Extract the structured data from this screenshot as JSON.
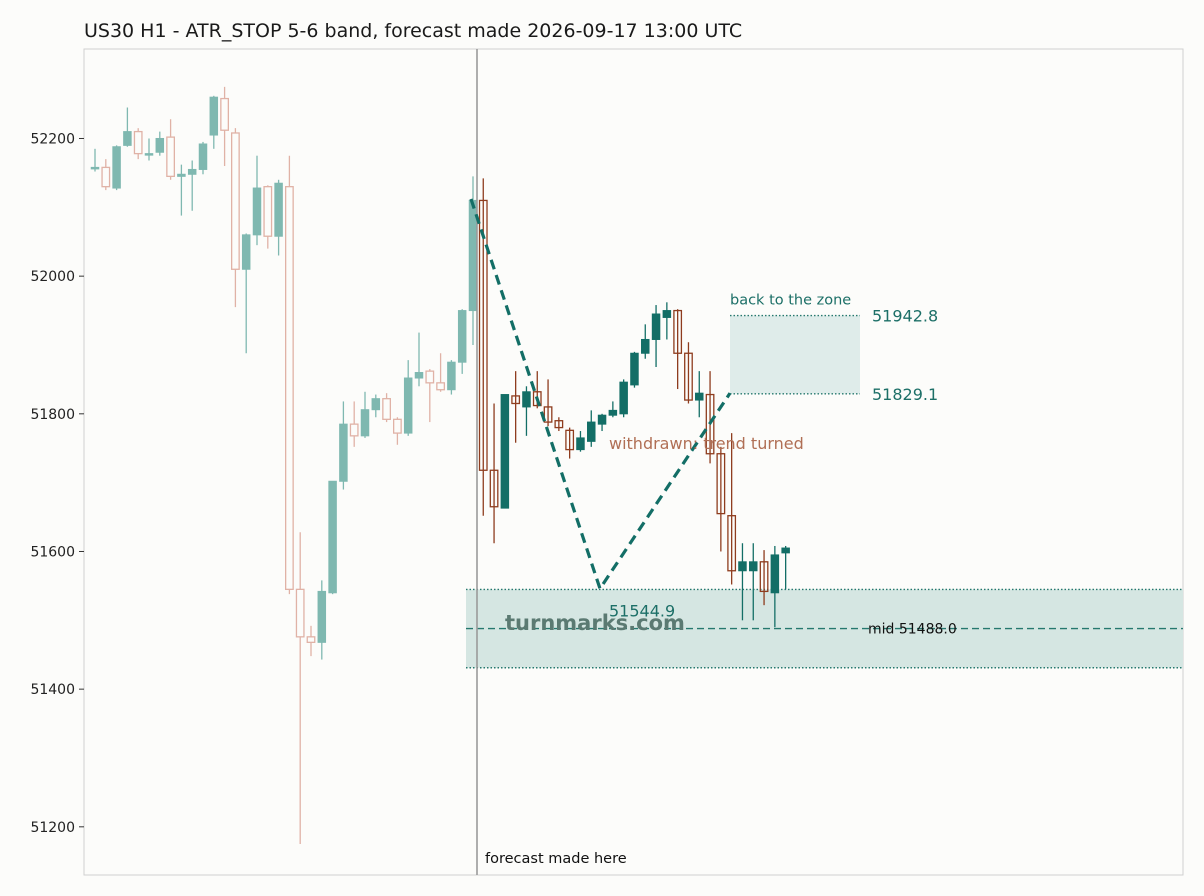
{
  "chart_data": {
    "type": "candlestick",
    "title": "US30 H1 - ATR_STOP 5-6 band, forecast made 2026-09-17 13:00 UTC",
    "ylim": [
      51130,
      52330
    ],
    "y_ticks": [
      51200,
      51400,
      51600,
      51800,
      52000,
      52200
    ],
    "grid": false,
    "colors": {
      "history_up": "#7fb8b0",
      "history_down": "#e0b2a6",
      "forecast_up": "#136e66",
      "forecast_down": "#8e3c1e",
      "band": "#d5e6e2",
      "band_line": "#26786e",
      "zone_text": "#1c6f67",
      "withdrawn_text": "#b06f55"
    },
    "history": [
      {
        "o": 52156,
        "h": 52185,
        "l": 52152,
        "c": 52158
      },
      {
        "o": 52158,
        "h": 52170,
        "l": 52125,
        "c": 52130
      },
      {
        "o": 52128,
        "h": 52190,
        "l": 52125,
        "c": 52188
      },
      {
        "o": 52190,
        "h": 52245,
        "l": 52188,
        "c": 52210
      },
      {
        "o": 52210,
        "h": 52215,
        "l": 52170,
        "c": 52178
      },
      {
        "o": 52176,
        "h": 52200,
        "l": 52168,
        "c": 52178
      },
      {
        "o": 52180,
        "h": 52210,
        "l": 52175,
        "c": 52200
      },
      {
        "o": 52202,
        "h": 52228,
        "l": 52140,
        "c": 52145
      },
      {
        "o": 52145,
        "h": 52162,
        "l": 52088,
        "c": 52148
      },
      {
        "o": 52148,
        "h": 52168,
        "l": 52095,
        "c": 52155
      },
      {
        "o": 52155,
        "h": 52195,
        "l": 52148,
        "c": 52192
      },
      {
        "o": 52205,
        "h": 52262,
        "l": 52185,
        "c": 52260
      },
      {
        "o": 52258,
        "h": 52275,
        "l": 52160,
        "c": 52212
      },
      {
        "o": 52208,
        "h": 52215,
        "l": 51955,
        "c": 52010
      },
      {
        "o": 52010,
        "h": 52062,
        "l": 51888,
        "c": 52060
      },
      {
        "o": 52060,
        "h": 52175,
        "l": 52045,
        "c": 52128
      },
      {
        "o": 52130,
        "h": 52132,
        "l": 52040,
        "c": 52058
      },
      {
        "o": 52058,
        "h": 52140,
        "l": 52030,
        "c": 52135
      },
      {
        "o": 52130,
        "h": 52175,
        "l": 51538,
        "c": 51545
      },
      {
        "o": 51545,
        "h": 51628,
        "l": 51175,
        "c": 51476
      },
      {
        "o": 51476,
        "h": 51492,
        "l": 51448,
        "c": 51468
      },
      {
        "o": 51468,
        "h": 51558,
        "l": 51443,
        "c": 51542
      },
      {
        "o": 51540,
        "h": 51702,
        "l": 51538,
        "c": 51702
      },
      {
        "o": 51702,
        "h": 51818,
        "l": 51690,
        "c": 51785
      },
      {
        "o": 51785,
        "h": 51818,
        "l": 51752,
        "c": 51768
      },
      {
        "o": 51768,
        "h": 51832,
        "l": 51765,
        "c": 51806
      },
      {
        "o": 51806,
        "h": 51828,
        "l": 51795,
        "c": 51822
      },
      {
        "o": 51822,
        "h": 51830,
        "l": 51788,
        "c": 51792
      },
      {
        "o": 51792,
        "h": 51795,
        "l": 51755,
        "c": 51772
      },
      {
        "o": 51772,
        "h": 51878,
        "l": 51768,
        "c": 51852
      },
      {
        "o": 51852,
        "h": 51918,
        "l": 51840,
        "c": 51860
      },
      {
        "o": 51862,
        "h": 51865,
        "l": 51788,
        "c": 51845
      },
      {
        "o": 51845,
        "h": 51888,
        "l": 51832,
        "c": 51835
      },
      {
        "o": 51835,
        "h": 51878,
        "l": 51828,
        "c": 51875
      },
      {
        "o": 51875,
        "h": 51952,
        "l": 51858,
        "c": 51950
      },
      {
        "o": 51950,
        "h": 52145,
        "l": 51900,
        "c": 52110
      }
    ],
    "forecast": [
      {
        "o": 52110,
        "h": 52142,
        "l": 51652,
        "c": 51718
      },
      {
        "o": 51718,
        "h": 51815,
        "l": 51612,
        "c": 51665
      },
      {
        "o": 51663,
        "h": 51828,
        "l": 51663,
        "c": 51828
      },
      {
        "o": 51826,
        "h": 51862,
        "l": 51758,
        "c": 51815
      },
      {
        "o": 51810,
        "h": 51840,
        "l": 51768,
        "c": 51832
      },
      {
        "o": 51832,
        "h": 51862,
        "l": 51808,
        "c": 51812
      },
      {
        "o": 51810,
        "h": 51850,
        "l": 51782,
        "c": 51788
      },
      {
        "o": 51790,
        "h": 51795,
        "l": 51775,
        "c": 51780
      },
      {
        "o": 51776,
        "h": 51780,
        "l": 51735,
        "c": 51748
      },
      {
        "o": 51748,
        "h": 51775,
        "l": 51745,
        "c": 51765
      },
      {
        "o": 51760,
        "h": 51805,
        "l": 51752,
        "c": 51788
      },
      {
        "o": 51785,
        "h": 51800,
        "l": 51775,
        "c": 51798
      },
      {
        "o": 51798,
        "h": 51818,
        "l": 51795,
        "c": 51805
      },
      {
        "o": 51800,
        "h": 51850,
        "l": 51795,
        "c": 51846
      },
      {
        "o": 51842,
        "h": 51890,
        "l": 51838,
        "c": 51888
      },
      {
        "o": 51888,
        "h": 51930,
        "l": 51880,
        "c": 51908
      },
      {
        "o": 51908,
        "h": 51958,
        "l": 51868,
        "c": 51945
      },
      {
        "o": 51940,
        "h": 51962,
        "l": 51908,
        "c": 51950
      },
      {
        "o": 51950,
        "h": 51952,
        "l": 51836,
        "c": 51888
      },
      {
        "o": 51888,
        "h": 51904,
        "l": 51815,
        "c": 51820
      },
      {
        "o": 51820,
        "h": 51862,
        "l": 51795,
        "c": 51830
      },
      {
        "o": 51828,
        "h": 51862,
        "l": 51728,
        "c": 51742
      },
      {
        "o": 51742,
        "h": 51752,
        "l": 51600,
        "c": 51655
      },
      {
        "o": 51652,
        "h": 51772,
        "l": 51552,
        "c": 51572
      },
      {
        "o": 51572,
        "h": 51612,
        "l": 51500,
        "c": 51585
      },
      {
        "o": 51572,
        "h": 51612,
        "l": 51500,
        "c": 51585
      },
      {
        "o": 51585,
        "h": 51602,
        "l": 51522,
        "c": 51542
      },
      {
        "o": 51540,
        "h": 51608,
        "l": 51490,
        "c": 51595
      },
      {
        "o": 51598,
        "h": 51608,
        "l": 51545,
        "c": 51605
      }
    ],
    "band": {
      "upper": 51544.9,
      "lower": 51431.1,
      "mid": 51488.0,
      "mid_label": "mid 51488.0",
      "value_label": "51544.9"
    },
    "zone": {
      "upper": 51942.8,
      "lower": 51829.1,
      "label": "back to the zone",
      "upper_label": "51942.8",
      "lower_label": "51829.1"
    },
    "path": {
      "start": 52112,
      "low": 51546,
      "end": 51830
    },
    "withdrawn_label": "withdrawn: trend turned",
    "forecast_label": "forecast made here",
    "watermark": "turnmarks.com"
  }
}
